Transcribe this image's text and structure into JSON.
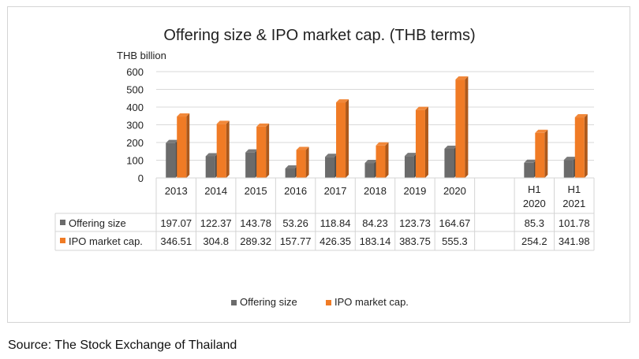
{
  "chart_data": {
    "type": "bar",
    "title": "Offering size & IPO market cap. (THB terms)",
    "unit_label": "THB billion",
    "ylim": [
      0,
      600
    ],
    "yticks": [
      0,
      100,
      200,
      300,
      400,
      500,
      600
    ],
    "grid": true,
    "legend_position": "bottom",
    "categories": [
      {
        "line1": "2013",
        "line2": ""
      },
      {
        "line1": "2014",
        "line2": ""
      },
      {
        "line1": "2015",
        "line2": ""
      },
      {
        "line1": "2016",
        "line2": ""
      },
      {
        "line1": "2017",
        "line2": ""
      },
      {
        "line1": "2018",
        "line2": ""
      },
      {
        "line1": "2019",
        "line2": ""
      },
      {
        "line1": "2020",
        "line2": ""
      },
      {
        "line1": "",
        "line2": ""
      },
      {
        "line1": "H1",
        "line2": "2020"
      },
      {
        "line1": "H1",
        "line2": "2021"
      }
    ],
    "series": [
      {
        "name": "Offering size",
        "color": "#6b6b6b",
        "values": [
          197.07,
          122.37,
          143.78,
          53.26,
          118.84,
          84.23,
          123.73,
          164.67,
          null,
          85.3,
          101.78
        ],
        "labels": [
          "197.07",
          "122.37",
          "143.78",
          "53.26",
          "118.84",
          "84.23",
          "123.73",
          "164.67",
          "",
          "85.3",
          "101.78"
        ]
      },
      {
        "name": "IPO market cap.",
        "color": "#f07b25",
        "values": [
          346.51,
          304.8,
          289.32,
          157.77,
          426.35,
          183.14,
          383.75,
          555.3,
          null,
          254.2,
          341.98
        ],
        "labels": [
          "346.51",
          "304.8",
          "289.32",
          "157.77",
          "426.35",
          "183.14",
          "383.75",
          "555.3",
          "",
          "254.2",
          "341.98"
        ]
      }
    ]
  },
  "source": "Source: The Stock Exchange of Thailand"
}
